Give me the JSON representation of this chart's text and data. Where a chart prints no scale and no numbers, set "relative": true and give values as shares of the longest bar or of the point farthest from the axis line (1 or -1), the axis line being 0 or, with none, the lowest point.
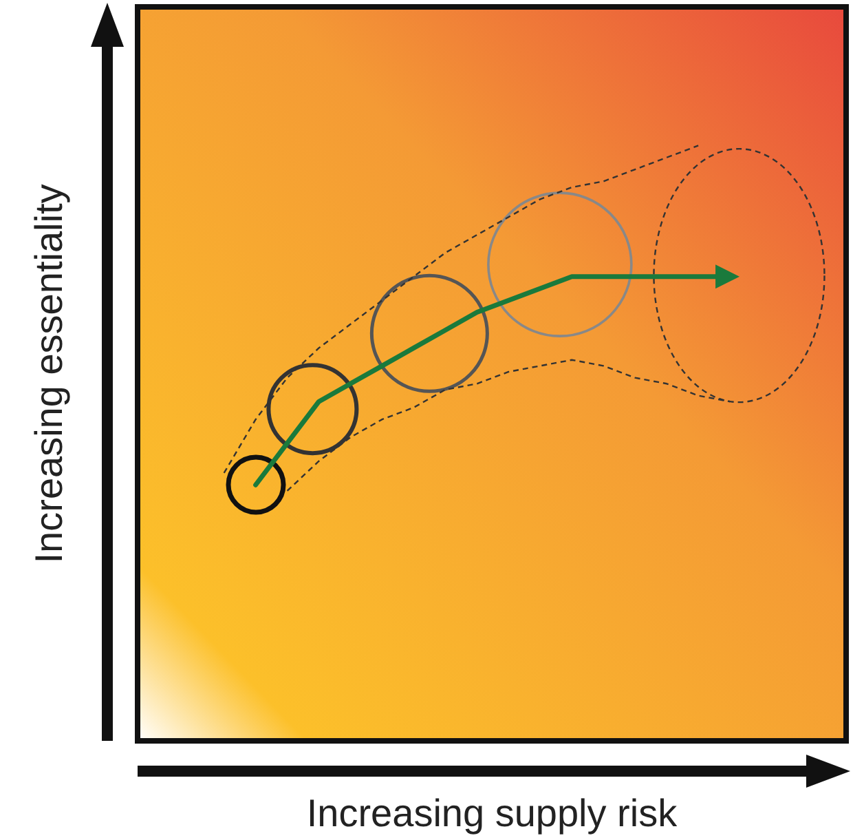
{
  "chart_data": {
    "type": "line",
    "xlabel": "Increasing supply risk",
    "ylabel": "Increasing essentiality",
    "relative": true,
    "categories": [
      null,
      null,
      null,
      null,
      null,
      null,
      null,
      null,
      null,
      null,
      null,
      null,
      null,
      null,
      null,
      null,
      null
    ],
    "series": [
      {
        "color": "#333333",
        "line_style": "dashed",
        "values": [
          0.45,
          0.54,
          0.61,
          0.66,
          0.7,
          0.74,
          0.78,
          0.82,
          0.85,
          0.88,
          0.91,
          0.93,
          0.94,
          0.96,
          0.98,
          1,
          null
        ]
      },
      {
        "color": "#333333",
        "line_style": "dashed",
        "values": [
          null,
          null,
          0.42,
          0.47,
          0.51,
          0.54,
          0.56,
          0.59,
          0.6,
          0.62,
          0.63,
          0.64,
          0.63,
          0.61,
          0.6,
          0.58,
          0.57
        ]
      },
      {
        "color": "#1a7a3c",
        "line_style": "solid",
        "values": [
          null,
          0.43,
          0.5,
          0.57,
          0.6,
          0.63,
          0.66,
          0.69,
          0.72,
          0.74,
          0.76,
          0.78,
          0.78,
          0.78,
          0.78,
          0.78,
          0.78
        ]
      }
    ]
  }
}
